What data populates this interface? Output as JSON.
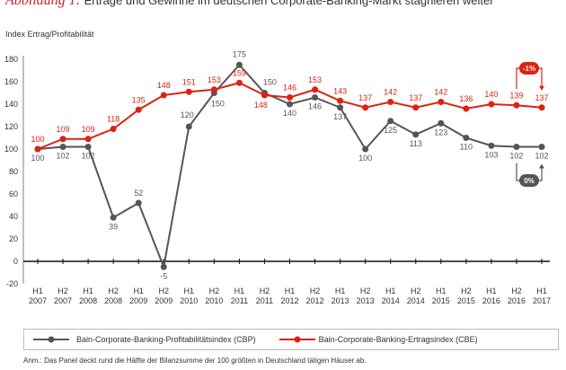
{
  "title": {
    "figure_label": "Abbildung 1:",
    "text": "Erträge und Gewinne im deutschen Corporate-Banking-Markt stagnieren weiter"
  },
  "chart_data": {
    "type": "line",
    "ylabel": "Index Ertrag/Profitabilität",
    "ylim": [
      -20,
      180
    ],
    "yticks": [
      -20,
      0,
      20,
      40,
      60,
      80,
      100,
      120,
      140,
      160,
      180
    ],
    "grid": false,
    "categories": [
      [
        "H1",
        "2007"
      ],
      [
        "H2",
        "2007"
      ],
      [
        "H1",
        "2008"
      ],
      [
        "H2",
        "2008"
      ],
      [
        "H1",
        "2009"
      ],
      [
        "H2",
        "2009"
      ],
      [
        "H1",
        "2010"
      ],
      [
        "H2",
        "2010"
      ],
      [
        "H1",
        "2011"
      ],
      [
        "H2",
        "2011"
      ],
      [
        "H1",
        "2012"
      ],
      [
        "H2",
        "2012"
      ],
      [
        "H1",
        "2013"
      ],
      [
        "H2",
        "2013"
      ],
      [
        "H1",
        "2014"
      ],
      [
        "H2",
        "2014"
      ],
      [
        "H1",
        "2015"
      ],
      [
        "H2",
        "2015"
      ],
      [
        "H1",
        "2016"
      ],
      [
        "H2",
        "2016"
      ],
      [
        "H1",
        "2017"
      ]
    ],
    "series": [
      {
        "name": "Bain-Corporate-Banking-Profitabilitätsindex (CBP)",
        "color": "#555555",
        "values": [
          100,
          102,
          102,
          39,
          52,
          -5,
          120,
          150,
          175,
          150,
          140,
          146,
          137,
          100,
          125,
          113,
          123,
          110,
          103,
          102,
          102
        ]
      },
      {
        "name": "Bain-Corporate-Banking-Ertragsindex (CBE)",
        "color": "#dd2211",
        "values": [
          100,
          109,
          109,
          118,
          135,
          148,
          151,
          153,
          159,
          148,
          146,
          153,
          143,
          137,
          142,
          137,
          142,
          136,
          140,
          139,
          137
        ]
      }
    ],
    "annotations": [
      {
        "text": "-1%",
        "series": "CBE",
        "color": "#dd2211"
      },
      {
        "text": "0%",
        "series": "CBP",
        "color": "#555555"
      }
    ],
    "legend": "bottom"
  },
  "footnote": "Anm.: Das Panel deckt rund die Hälfte der Bilanzsumme der 100 größten in Deutschland tätigen Häuser ab."
}
